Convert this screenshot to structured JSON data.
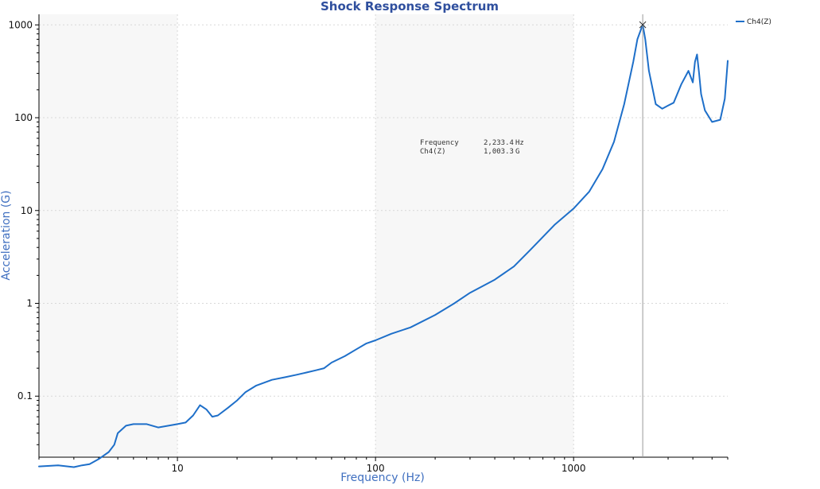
{
  "chart_data": {
    "type": "line",
    "title": "Shock Response Spectrum",
    "xlabel": "Frequency (Hz)",
    "ylabel": "Acceleration (G)",
    "xscale": "log",
    "yscale": "log",
    "xlim": [
      2,
      6000
    ],
    "ylim": [
      0.022,
      1300
    ],
    "x_ticks": [
      10,
      100,
      1000
    ],
    "x_tick_labels": [
      "10",
      "100",
      "1000"
    ],
    "y_ticks": [
      0.1,
      1,
      10,
      100,
      1000
    ],
    "y_tick_labels": [
      "0.1",
      "1",
      "10",
      "100",
      "1000"
    ],
    "grid": true,
    "legend_position": "top-right",
    "series": [
      {
        "name": "Ch4(Z)",
        "color": "#1e6fc9",
        "x": [
          2,
          2.5,
          3,
          3.3,
          3.6,
          4,
          4.5,
          4.8,
          5,
          5.5,
          6,
          7,
          8,
          9,
          10,
          11,
          12,
          13,
          14,
          15,
          16,
          18,
          20,
          22,
          25,
          30,
          35,
          40,
          45,
          50,
          55,
          60,
          70,
          80,
          90,
          100,
          120,
          150,
          200,
          250,
          300,
          400,
          500,
          600,
          700,
          800,
          1000,
          1200,
          1400,
          1600,
          1800,
          2000,
          2100,
          2233,
          2300,
          2400,
          2600,
          2800,
          3000,
          3200,
          3500,
          3800,
          4000,
          4100,
          4200,
          4300,
          4400,
          4600,
          5000,
          5500,
          5800,
          6000
        ],
        "y": [
          0.0175,
          0.018,
          0.0172,
          0.018,
          0.0185,
          0.021,
          0.025,
          0.03,
          0.04,
          0.048,
          0.05,
          0.05,
          0.046,
          0.048,
          0.05,
          0.052,
          0.062,
          0.08,
          0.072,
          0.06,
          0.062,
          0.075,
          0.09,
          0.11,
          0.13,
          0.15,
          0.16,
          0.17,
          0.18,
          0.19,
          0.2,
          0.23,
          0.27,
          0.32,
          0.37,
          0.4,
          0.47,
          0.55,
          0.75,
          1.0,
          1.3,
          1.8,
          2.5,
          3.7,
          5.2,
          7.0,
          10.5,
          16,
          28,
          55,
          140,
          400,
          700,
          1003.3,
          700,
          320,
          140,
          125,
          135,
          145,
          230,
          320,
          240,
          400,
          480,
          300,
          180,
          120,
          90,
          95,
          160,
          410
        ]
      }
    ],
    "cursor": {
      "frequency_label": "Frequency",
      "frequency_value": "2,233.4",
      "frequency_unit": "Hz",
      "channel_label": "Ch4(Z)",
      "channel_value": "1,003.3",
      "channel_unit": "G",
      "marker_x": 2233.4,
      "marker_y": 1003.3
    }
  }
}
